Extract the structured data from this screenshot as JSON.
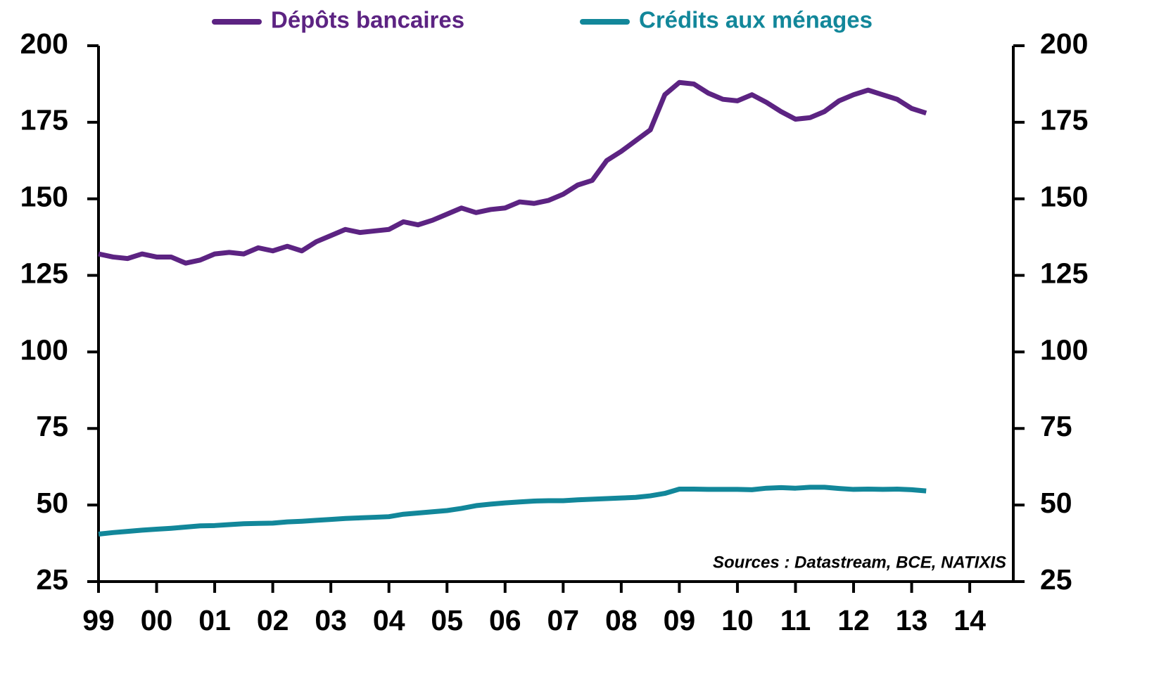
{
  "chart_data": {
    "type": "line",
    "annotation": "Sources : Datastream, BCE, NATIXIS",
    "x": [
      1999,
      1999.25,
      1999.5,
      1999.75,
      2000,
      2000.25,
      2000.5,
      2000.75,
      2001,
      2001.25,
      2001.5,
      2001.75,
      2002,
      2002.25,
      2002.5,
      2002.75,
      2003,
      2003.25,
      2003.5,
      2003.75,
      2004,
      2004.25,
      2004.5,
      2004.75,
      2005,
      2005.25,
      2005.5,
      2005.75,
      2006,
      2006.25,
      2006.5,
      2006.75,
      2007,
      2007.25,
      2007.5,
      2007.75,
      2008,
      2008.25,
      2008.5,
      2008.75,
      2009,
      2009.25,
      2009.5,
      2009.75,
      2010,
      2010.25,
      2010.5,
      2010.75,
      2011,
      2011.25,
      2011.5,
      2011.75,
      2012,
      2012.25,
      2012.5,
      2012.75,
      2013,
      2013.25
    ],
    "series": [
      {
        "name": "Dépôts bancaires",
        "color": "#5c2382",
        "values": [
          132,
          131,
          130.5,
          132,
          131,
          131,
          129,
          130,
          132,
          132.5,
          132,
          134,
          133,
          134.5,
          133,
          136,
          138,
          140,
          139,
          139.5,
          140,
          142.5,
          141.5,
          143,
          145,
          147,
          145.5,
          146.5,
          147,
          149,
          148.5,
          149.5,
          151.5,
          154.5,
          156,
          162.5,
          165.5,
          169,
          172.5,
          184,
          188,
          187.5,
          184.5,
          182.5,
          182,
          184,
          181.5,
          178.5,
          176,
          176.5,
          178.5,
          182,
          184,
          185.5,
          184,
          182.5,
          179.5,
          178
        ]
      },
      {
        "name": "Crédits aux ménages",
        "color": "#12879a",
        "values": [
          40.5,
          41,
          41.4,
          41.8,
          42.1,
          42.4,
          42.8,
          43.2,
          43.3,
          43.6,
          43.9,
          44,
          44.1,
          44.5,
          44.7,
          45,
          45.3,
          45.6,
          45.8,
          46,
          46.2,
          47,
          47.4,
          47.8,
          48.2,
          48.9,
          49.8,
          50.3,
          50.7,
          51,
          51.3,
          51.4,
          51.4,
          51.7,
          51.9,
          52.1,
          52.3,
          52.5,
          53,
          53.8,
          55.2,
          55.2,
          55.1,
          55.1,
          55.1,
          55,
          55.5,
          55.7,
          55.5,
          55.8,
          55.8,
          55.4,
          55.1,
          55.2,
          55.1,
          55.2,
          55,
          54.6
        ]
      }
    ],
    "xlim": [
      1999,
      2014.75
    ],
    "xticks": [
      {
        "value": 1999,
        "label": "99"
      },
      {
        "value": 2000,
        "label": "00"
      },
      {
        "value": 2001,
        "label": "01"
      },
      {
        "value": 2002,
        "label": "02"
      },
      {
        "value": 2003,
        "label": "03"
      },
      {
        "value": 2004,
        "label": "04"
      },
      {
        "value": 2005,
        "label": "05"
      },
      {
        "value": 2006,
        "label": "06"
      },
      {
        "value": 2007,
        "label": "07"
      },
      {
        "value": 2008,
        "label": "08"
      },
      {
        "value": 2009,
        "label": "09"
      },
      {
        "value": 2010,
        "label": "10"
      },
      {
        "value": 2011,
        "label": "11"
      },
      {
        "value": 2012,
        "label": "12"
      },
      {
        "value": 2013,
        "label": "13"
      },
      {
        "value": 2014,
        "label": "14"
      }
    ],
    "ylim": [
      25,
      200
    ],
    "yticks": [
      25,
      50,
      75,
      100,
      125,
      150,
      175,
      200
    ],
    "y2lim": [
      25,
      200
    ],
    "y2ticks": [
      25,
      50,
      75,
      100,
      125,
      150,
      175,
      200
    ],
    "grid": false,
    "legend": "top"
  }
}
